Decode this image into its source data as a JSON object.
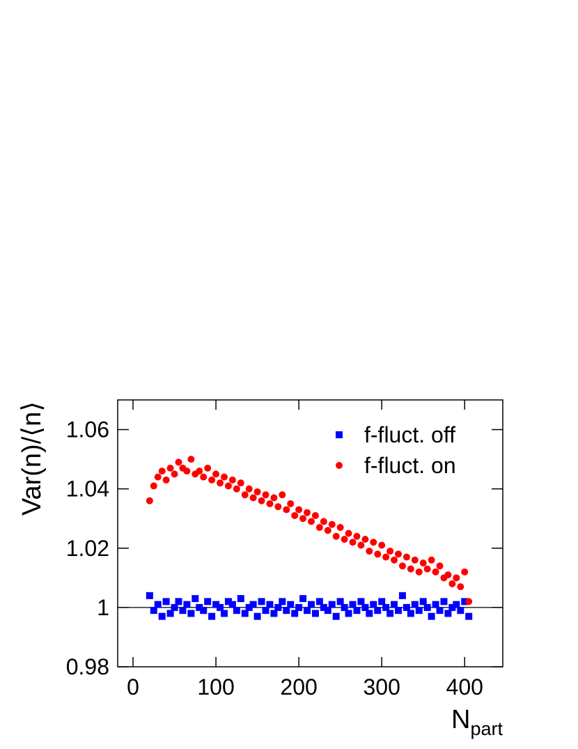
{
  "chart_data": {
    "type": "scatter",
    "y_label": "Var(n)/⟨n⟩",
    "x_label": "N",
    "x_label_subscript": "part",
    "xlim": [
      -18.5,
      446
    ],
    "ylim": [
      0.98,
      1.07
    ],
    "xticks": [
      0,
      100,
      200,
      300,
      400
    ],
    "yticks": [
      0.98,
      1,
      1.02,
      1.04,
      1.06
    ],
    "reference_line": 1,
    "legend": "top-right",
    "x": [
      20,
      25,
      30,
      35,
      40,
      45,
      50,
      55,
      60,
      65,
      70,
      75,
      80,
      85,
      90,
      95,
      100,
      105,
      110,
      115,
      120,
      125,
      130,
      135,
      140,
      145,
      150,
      155,
      160,
      165,
      170,
      175,
      180,
      185,
      190,
      195,
      200,
      205,
      210,
      215,
      220,
      225,
      230,
      235,
      240,
      245,
      250,
      255,
      260,
      265,
      270,
      275,
      280,
      285,
      290,
      295,
      300,
      305,
      310,
      315,
      320,
      325,
      330,
      335,
      340,
      345,
      350,
      355,
      360,
      365,
      370,
      375,
      380,
      385,
      390,
      395,
      400,
      405
    ],
    "series": [
      {
        "name": "f-fluct. off",
        "color": "#0000ff",
        "marker": "square",
        "values": [
          1.004,
          0.999,
          1.001,
          0.997,
          1.002,
          0.998,
          1.0,
          1.002,
          0.999,
          1.001,
          0.998,
          1.003,
          1.0,
          0.999,
          1.002,
          0.997,
          1.001,
          1.0,
          0.998,
          1.002,
          1.001,
          0.999,
          1.003,
          0.998,
          1.0,
          1.001,
          0.997,
          1.002,
          0.999,
          1.001,
          0.998,
          1.0,
          1.002,
          0.999,
          1.001,
          0.998,
          1.0,
          1.003,
          0.999,
          1.001,
          0.998,
          1.002,
          1.0,
          0.999,
          1.001,
          0.997,
          1.002,
          1.0,
          0.998,
          1.001,
          0.999,
          1.002,
          1.0,
          0.998,
          1.001,
          0.999,
          1.002,
          1.0,
          0.998,
          1.001,
          0.999,
          1.004,
          1.0,
          0.998,
          1.001,
          0.999,
          1.002,
          1.0,
          0.997,
          1.001,
          0.999,
          1.002,
          0.998,
          1.0,
          1.001,
          0.999,
          1.002,
          0.997
        ]
      },
      {
        "name": "f-fluct. on",
        "color": "#ff0000",
        "marker": "circle",
        "values": [
          1.036,
          1.041,
          1.044,
          1.046,
          1.043,
          1.047,
          1.045,
          1.049,
          1.047,
          1.046,
          1.05,
          1.045,
          1.046,
          1.044,
          1.047,
          1.043,
          1.045,
          1.042,
          1.044,
          1.041,
          1.043,
          1.04,
          1.042,
          1.038,
          1.04,
          1.037,
          1.039,
          1.036,
          1.038,
          1.035,
          1.037,
          1.034,
          1.038,
          1.033,
          1.035,
          1.031,
          1.033,
          1.03,
          1.032,
          1.029,
          1.031,
          1.027,
          1.029,
          1.026,
          1.028,
          1.024,
          1.027,
          1.023,
          1.025,
          1.022,
          1.024,
          1.021,
          1.023,
          1.019,
          1.022,
          1.018,
          1.021,
          1.017,
          1.019,
          1.016,
          1.018,
          1.014,
          1.017,
          1.013,
          1.016,
          1.012,
          1.015,
          1.013,
          1.016,
          1.012,
          1.014,
          1.01,
          1.011,
          1.008,
          1.01,
          1.007,
          1.012,
          1.002
        ]
      }
    ]
  }
}
